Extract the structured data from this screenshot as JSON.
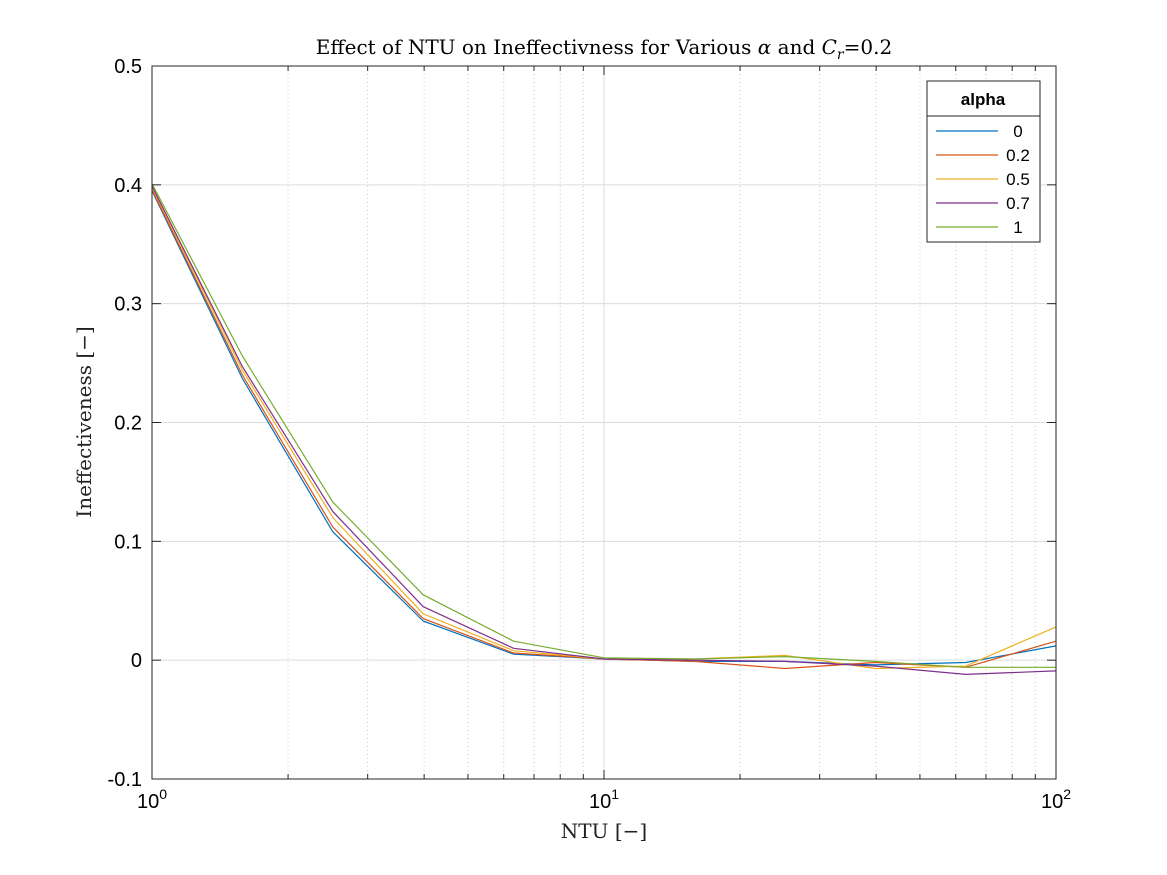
{
  "chart_data": {
    "type": "line",
    "title_main": "Effect of NTU on Ineffectivness for Various ",
    "title_alpha": "α",
    "title_mid": " and ",
    "title_c": "C",
    "title_sub": "r",
    "title_end": "=0.2",
    "xlabel": "NTU [−]",
    "ylabel": "Ineffectiveness [−]",
    "xscale": "log",
    "xlim": [
      1,
      100
    ],
    "ylim": [
      -0.1,
      0.5
    ],
    "yticks": [
      "-0.1",
      "0",
      "0.1",
      "0.2",
      "0.3",
      "0.4",
      "0.5"
    ],
    "xticks": [
      {
        "base": "10",
        "exp": "0"
      },
      {
        "base": "10",
        "exp": "1"
      },
      {
        "base": "10",
        "exp": "2"
      }
    ],
    "grid": true,
    "legend": {
      "title": "alpha",
      "location": "top-right"
    },
    "x": [
      1,
      1.585,
      2.512,
      3.981,
      6.31,
      10,
      15.85,
      25.12,
      39.81,
      63.1,
      100
    ],
    "series": [
      {
        "name": "0",
        "color": "#0072BD",
        "values": [
          0.395,
          0.237,
          0.108,
          0.033,
          0.005,
          0.001,
          -0.001,
          -0.001,
          -0.004,
          -0.002,
          0.012
        ]
      },
      {
        "name": "0.2",
        "color": "#D95319",
        "values": [
          0.396,
          0.24,
          0.112,
          0.035,
          0.006,
          0.001,
          -0.001,
          -0.007,
          -0.002,
          -0.006,
          0.016
        ]
      },
      {
        "name": "0.5",
        "color": "#EDB120",
        "values": [
          0.398,
          0.244,
          0.12,
          0.039,
          0.008,
          0.001,
          0.001,
          0.004,
          -0.007,
          -0.005,
          0.028
        ]
      },
      {
        "name": "0.7",
        "color": "#7E2F8E",
        "values": [
          0.399,
          0.247,
          0.125,
          0.045,
          0.01,
          0.001,
          0.0,
          -0.001,
          -0.005,
          -0.012,
          -0.009
        ]
      },
      {
        "name": "1",
        "color": "#77AC30",
        "values": [
          0.401,
          0.256,
          0.133,
          0.055,
          0.016,
          0.002,
          0.001,
          0.003,
          -0.001,
          -0.006,
          -0.006
        ]
      }
    ]
  }
}
